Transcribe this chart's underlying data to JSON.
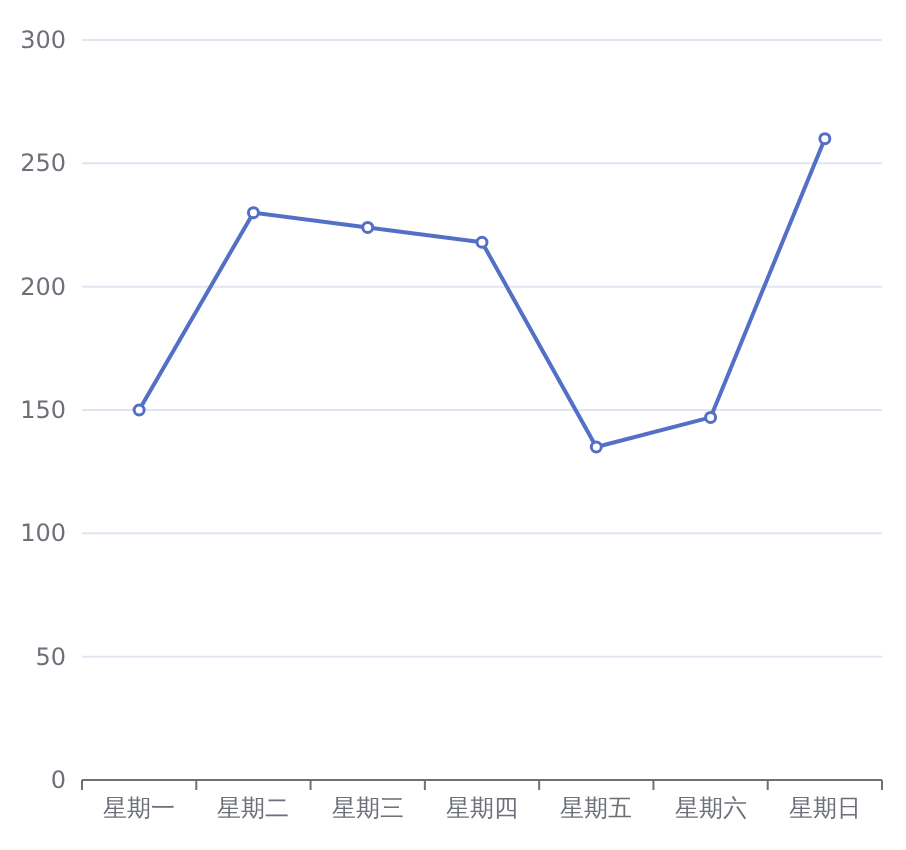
{
  "chart_data": {
    "type": "line",
    "categories": [
      "星期一",
      "星期二",
      "星期三",
      "星期四",
      "星期五",
      "星期六",
      "星期日"
    ],
    "values": [
      150,
      230,
      224,
      218,
      135,
      147,
      260
    ],
    "color": "#5470c6",
    "marker": "circle",
    "grid": "y",
    "ylim": [
      0,
      300
    ],
    "yticks": [
      0,
      50,
      100,
      150,
      200,
      250,
      300
    ]
  }
}
